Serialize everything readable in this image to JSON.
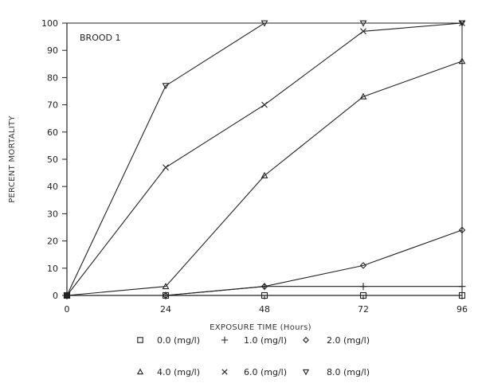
{
  "chart_data": {
    "type": "line",
    "title": "",
    "annotation": "BROOD 1",
    "xlabel": "EXPOSURE TIME (Hours)",
    "ylabel": "PERCENT MORTALITY",
    "x": [
      0,
      24,
      48,
      72,
      96
    ],
    "x_ticks": [
      "0",
      "24",
      "48",
      "72",
      "96"
    ],
    "y_ticks": [
      "0",
      "10",
      "20",
      "30",
      "40",
      "50",
      "60",
      "70",
      "80",
      "90",
      "100"
    ],
    "xlim": [
      0,
      96
    ],
    "ylim": [
      0,
      100
    ],
    "grid": false,
    "legend_position": "bottom",
    "series": [
      {
        "name": "0.0 (mg/l)",
        "marker": "square",
        "symbol": "□",
        "values": [
          0,
          0,
          0,
          0,
          0
        ]
      },
      {
        "name": "1.0 (mg/l)",
        "marker": "plus",
        "symbol": "+",
        "values": [
          0,
          0,
          3.3,
          3.3,
          3.3
        ]
      },
      {
        "name": "2.0 (mg/l)",
        "marker": "diamond",
        "symbol": "◇",
        "values": [
          0,
          0,
          3.3,
          11,
          24
        ]
      },
      {
        "name": "4.0 (mg/l)",
        "marker": "triangle-up",
        "symbol": "△",
        "values": [
          0,
          3.3,
          44,
          73,
          86
        ]
      },
      {
        "name": "6.0 (mg/l)",
        "marker": "x",
        "symbol": "×",
        "values": [
          0,
          47,
          70,
          97,
          100
        ]
      },
      {
        "name": "8.0 (mg/l)",
        "marker": "triangle-down",
        "symbol": "▽",
        "values": [
          0,
          77,
          100,
          100,
          100
        ]
      }
    ]
  },
  "legend": {
    "row1": [
      {
        "symbol": "□",
        "label": "0.0 (mg/l)"
      },
      {
        "symbol": "+",
        "label": "1.0 (mg/l)"
      },
      {
        "symbol": "◇",
        "label": "2.0 (mg/l)"
      }
    ],
    "row2": [
      {
        "symbol": "△",
        "label": "4.0 (mg/l)"
      },
      {
        "symbol": "×",
        "label": "6.0 (mg/l)"
      },
      {
        "symbol": "▽",
        "label": "8.0 (mg/l)"
      }
    ]
  },
  "colors": {
    "ink": "#222222",
    "background": "#ffffff"
  }
}
